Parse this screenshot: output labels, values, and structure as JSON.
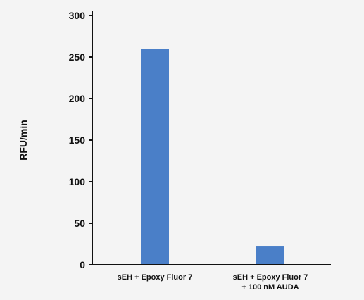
{
  "chart_data": {
    "type": "bar",
    "title": "",
    "xlabel": "",
    "ylabel": "RFU/min",
    "ylim": [
      0,
      300
    ],
    "yticks": [
      0,
      50,
      100,
      150,
      200,
      250,
      300
    ],
    "grid": false,
    "legend": "none",
    "bar_color": "#4a7fc8",
    "categories": [
      [
        "sEH + Epoxy Fluor 7"
      ],
      [
        "sEH + Epoxy Fluor 7",
        "+ 100 nM AUDA"
      ]
    ],
    "values": [
      260,
      22
    ]
  }
}
